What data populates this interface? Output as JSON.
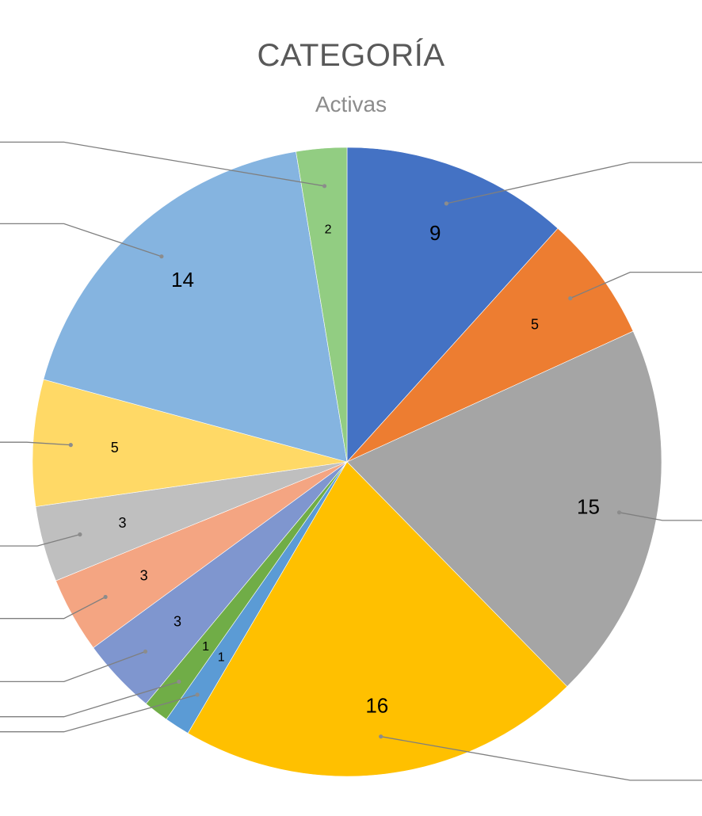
{
  "chart_data": {
    "type": "pie",
    "title": "CATEGORÍA",
    "subtitle": "Activas",
    "values": [
      9,
      5,
      15,
      16,
      1,
      1,
      3,
      3,
      3,
      5,
      14,
      2
    ],
    "colors": [
      "#4472c4",
      "#ed7d31",
      "#a5a5a5",
      "#ffc000",
      "#5b9bd5",
      "#70ad47",
      "#7f96cf",
      "#f4a582",
      "#bfbfbf",
      "#ffd966",
      "#85b4e0",
      "#92cd82"
    ],
    "data_labels": [
      "9",
      "5",
      "15",
      "16",
      "1",
      "1",
      "3",
      "3",
      "3",
      "5",
      "14",
      "2"
    ],
    "start_angle_deg": 0,
    "direction": "clockwise",
    "leader_lines": true
  }
}
